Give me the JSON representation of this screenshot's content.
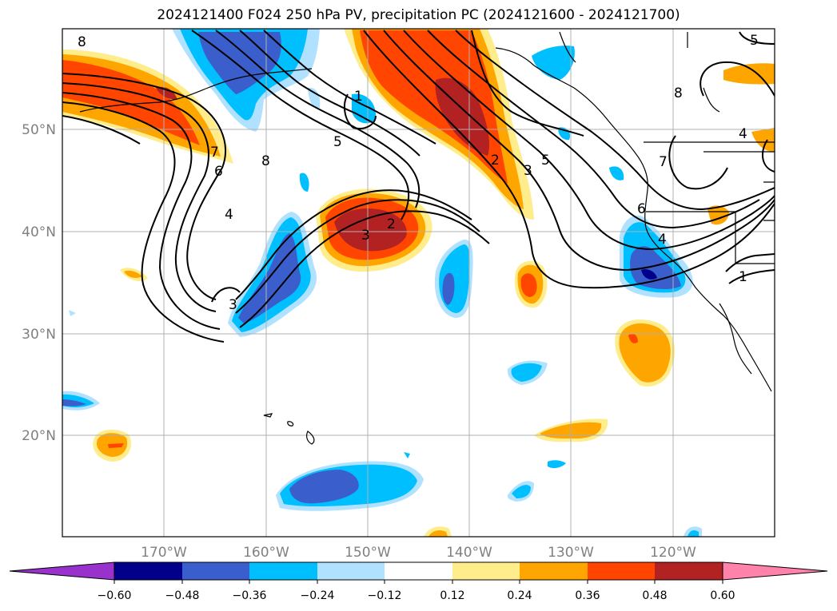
{
  "title": "2024121400 F024 250 hPa PV, precipitation PC (2024121600 - 2024121700)",
  "lat_labels": [
    "50°N",
    "40°N",
    "30°N",
    "20°N"
  ],
  "lon_labels": [
    "170°W",
    "160°W",
    "150°W",
    "140°W",
    "130°W",
    "120°W"
  ],
  "colorbar": {
    "levels": [
      "−0.60",
      "−0.48",
      "−0.36",
      "−0.24",
      "−0.12",
      "0.12",
      "0.24",
      "0.36",
      "0.48",
      "0.60"
    ],
    "colors": [
      "#9932cc",
      "#00008b",
      "#3a5fcd",
      "#00bfff",
      "#b0e2ff",
      "#ffffff",
      "#ffec8b",
      "#ffa500",
      "#ff4500",
      "#b22222",
      "#ff82ab"
    ]
  },
  "contour_labels": [
    "8",
    "7",
    "6",
    "4",
    "3",
    "8",
    "5",
    "2",
    "3",
    "1",
    "2",
    "3",
    "5",
    "7",
    "6",
    "4",
    "1",
    "8",
    "4",
    "5"
  ],
  "colors": {
    "pos_fill": "#ffa500",
    "pos_strong": "#ff4500",
    "pos_max": "#b22222",
    "pos_weak": "#ffec8b",
    "neg_fill": "#00bfff",
    "neg_strong": "#3a5fcd",
    "neg_max": "#00008b",
    "neg_weak": "#b0e2ff"
  }
}
